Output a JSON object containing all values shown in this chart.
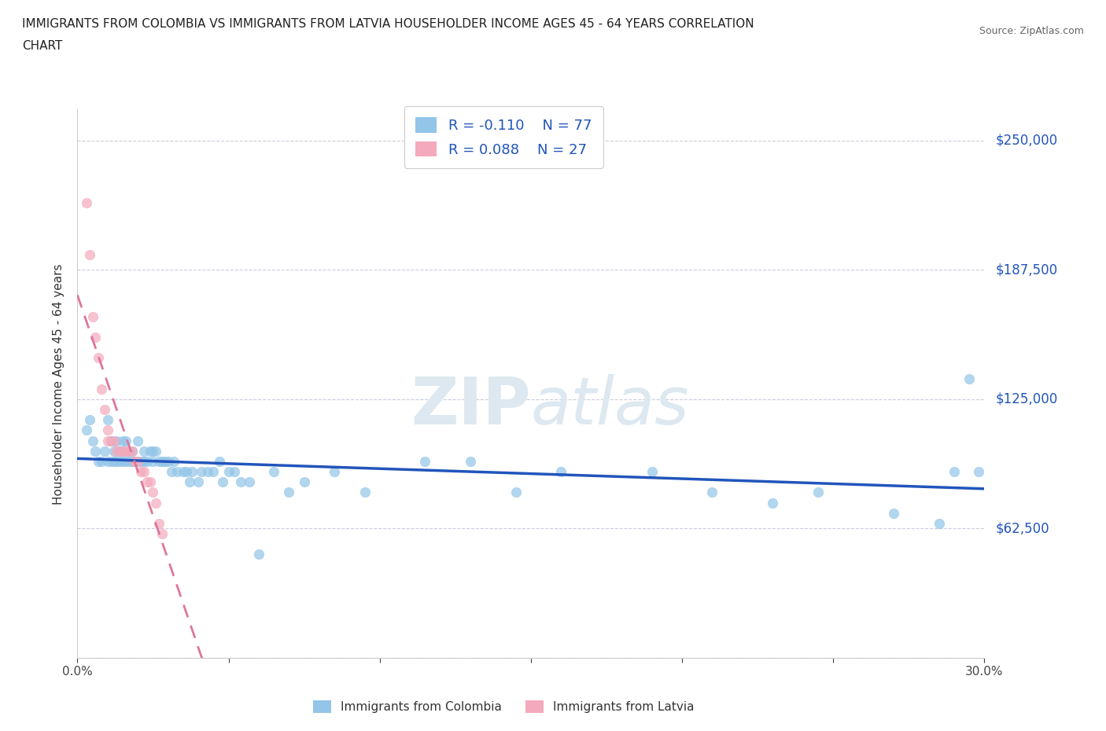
{
  "title_line1": "IMMIGRANTS FROM COLOMBIA VS IMMIGRANTS FROM LATVIA HOUSEHOLDER INCOME AGES 45 - 64 YEARS CORRELATION",
  "title_line2": "CHART",
  "source": "Source: ZipAtlas.com",
  "ylabel": "Householder Income Ages 45 - 64 years",
  "xlim": [
    0.0,
    0.3
  ],
  "ylim": [
    0,
    265000
  ],
  "yticks": [
    0,
    62500,
    125000,
    187500,
    250000
  ],
  "ytick_labels": [
    "",
    "$62,500",
    "$125,000",
    "$187,500",
    "$250,000"
  ],
  "xticks": [
    0.0,
    0.05,
    0.1,
    0.15,
    0.2,
    0.25,
    0.3
  ],
  "xtick_labels": [
    "0.0%",
    "",
    "",
    "",
    "",
    "",
    "30.0%"
  ],
  "colombia_color": "#92C5E8",
  "latvia_color": "#F4AABC",
  "colombia_line_color": "#2255BB",
  "latvia_line_color": "#DD7799",
  "colombia_R": -0.11,
  "colombia_N": 77,
  "latvia_R": 0.088,
  "latvia_N": 27,
  "watermark": "ZIPatlas",
  "colombia_x": [
    0.003,
    0.004,
    0.005,
    0.006,
    0.007,
    0.008,
    0.009,
    0.01,
    0.01,
    0.011,
    0.011,
    0.012,
    0.012,
    0.013,
    0.013,
    0.014,
    0.014,
    0.015,
    0.015,
    0.015,
    0.016,
    0.016,
    0.017,
    0.017,
    0.018,
    0.018,
    0.019,
    0.02,
    0.02,
    0.021,
    0.022,
    0.022,
    0.023,
    0.024,
    0.025,
    0.025,
    0.026,
    0.027,
    0.028,
    0.029,
    0.03,
    0.031,
    0.032,
    0.033,
    0.035,
    0.036,
    0.037,
    0.038,
    0.04,
    0.041,
    0.043,
    0.045,
    0.047,
    0.048,
    0.05,
    0.052,
    0.054,
    0.057,
    0.06,
    0.065,
    0.07,
    0.075,
    0.085,
    0.095,
    0.115,
    0.13,
    0.145,
    0.16,
    0.19,
    0.21,
    0.23,
    0.245,
    0.27,
    0.285,
    0.29,
    0.295,
    0.298
  ],
  "colombia_y": [
    110000,
    115000,
    105000,
    100000,
    95000,
    95000,
    100000,
    115000,
    95000,
    105000,
    95000,
    100000,
    95000,
    105000,
    95000,
    100000,
    95000,
    95000,
    105000,
    100000,
    105000,
    95000,
    100000,
    95000,
    95000,
    100000,
    95000,
    95000,
    105000,
    95000,
    95000,
    100000,
    95000,
    100000,
    100000,
    95000,
    100000,
    95000,
    95000,
    95000,
    95000,
    90000,
    95000,
    90000,
    90000,
    90000,
    85000,
    90000,
    85000,
    90000,
    90000,
    90000,
    95000,
    85000,
    90000,
    90000,
    85000,
    85000,
    50000,
    90000,
    80000,
    85000,
    90000,
    80000,
    95000,
    95000,
    80000,
    90000,
    90000,
    80000,
    75000,
    80000,
    70000,
    65000,
    90000,
    135000,
    90000
  ],
  "latvia_x": [
    0.003,
    0.004,
    0.005,
    0.006,
    0.007,
    0.008,
    0.009,
    0.01,
    0.01,
    0.011,
    0.012,
    0.013,
    0.014,
    0.015,
    0.016,
    0.017,
    0.018,
    0.019,
    0.02,
    0.021,
    0.022,
    0.023,
    0.024,
    0.025,
    0.026,
    0.027,
    0.028
  ],
  "latvia_y": [
    220000,
    195000,
    165000,
    155000,
    145000,
    130000,
    120000,
    110000,
    105000,
    105000,
    105000,
    100000,
    100000,
    100000,
    100000,
    100000,
    100000,
    95000,
    95000,
    90000,
    90000,
    85000,
    85000,
    80000,
    75000,
    65000,
    60000
  ]
}
